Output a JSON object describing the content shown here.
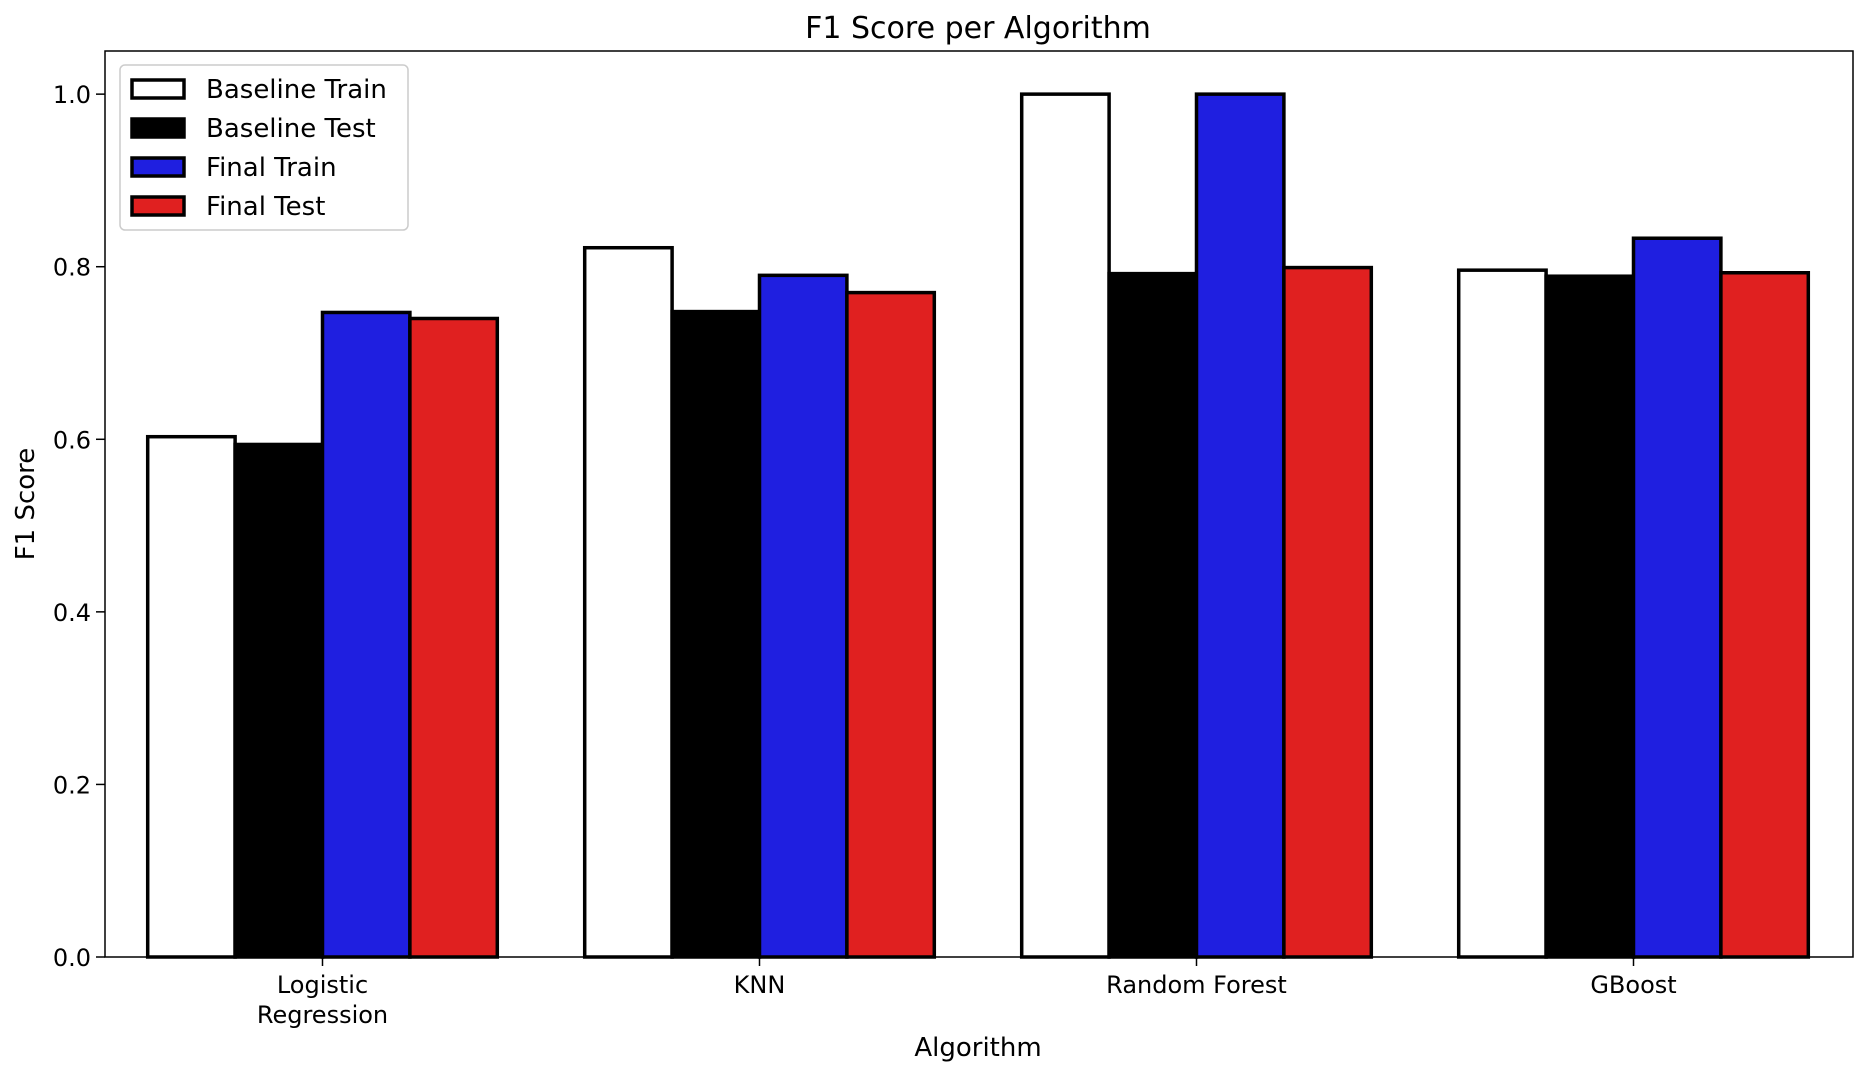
{
  "chart_data": {
    "type": "bar",
    "title": "F1 Score per Algorithm",
    "xlabel": "Algorithm",
    "ylabel": "F1 Score",
    "ylim": [
      0,
      1.05
    ],
    "yticks": [
      0.0,
      0.2,
      0.4,
      0.6,
      0.8,
      1.0
    ],
    "ytick_labels": [
      "0.0",
      "0.2",
      "0.4",
      "0.6",
      "0.8",
      "1.0"
    ],
    "categories": [
      [
        "Logistic",
        "Regression"
      ],
      [
        "KNN"
      ],
      [
        "Random Forest"
      ],
      [
        "GBoost"
      ]
    ],
    "series": [
      {
        "name": "Baseline Train",
        "color": "#ffffff",
        "values": [
          0.603,
          0.822,
          1.0,
          0.796
        ]
      },
      {
        "name": "Baseline Test",
        "color": "#000000",
        "values": [
          0.594,
          0.748,
          0.792,
          0.789
        ]
      },
      {
        "name": "Final Train",
        "color": "#1f1fe0",
        "values": [
          0.747,
          0.79,
          1.0,
          0.833
        ]
      },
      {
        "name": "Final Test",
        "color": "#e02020",
        "values": [
          0.74,
          0.77,
          0.799,
          0.793
        ]
      }
    ],
    "legend_position": "top-left",
    "grid": false
  }
}
